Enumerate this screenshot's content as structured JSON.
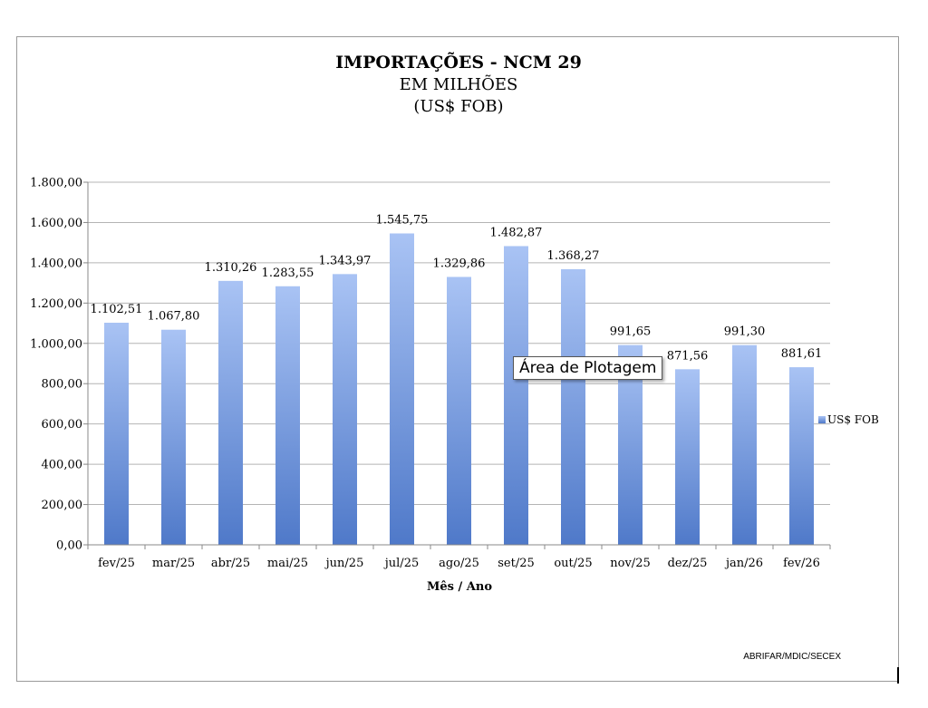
{
  "colors": {
    "bar_top": "#a9c3f4",
    "bar_bottom": "#4f79c9",
    "grid": "#b4b4b4",
    "axis": "#888888"
  },
  "tooltip": "Área de Plotagem",
  "source": "ABRIFAR/MDIC/SECEX",
  "chart_data": {
    "type": "bar",
    "title": "IMPORTAÇÕES - NCM 29",
    "subtitle_lines": [
      "EM MILHÕES",
      "(US$ FOB)"
    ],
    "xlabel": "Mês / Ano",
    "ylabel": "",
    "ylim": [
      0,
      1800
    ],
    "yticks": [
      0,
      200,
      400,
      600,
      800,
      1000,
      1200,
      1400,
      1600,
      1800
    ],
    "ytick_labels": [
      "0,00",
      "200,00",
      "400,00",
      "600,00",
      "800,00",
      "1.000,00",
      "1.200,00",
      "1.400,00",
      "1.600,00",
      "1.800,00"
    ],
    "grid": true,
    "legend_position": "right",
    "categories": [
      "fev/25",
      "mar/25",
      "abr/25",
      "mai/25",
      "jun/25",
      "jul/25",
      "ago/25",
      "set/25",
      "out/25",
      "nov/25",
      "dez/25",
      "jan/26",
      "fev/26"
    ],
    "series": [
      {
        "name": "US$ FOB",
        "values": [
          1102.51,
          1067.8,
          1310.26,
          1283.55,
          1343.97,
          1545.75,
          1329.86,
          1482.87,
          1368.27,
          991.65,
          871.56,
          991.3,
          881.61
        ],
        "labels": [
          "1.102,51",
          "1.067,80",
          "1.310,26",
          "1.283,55",
          "1.343,97",
          "1.545,75",
          "1.329,86",
          "1.482,87",
          "1.368,27",
          "991,65",
          "871,56",
          "991,30",
          "881,61"
        ]
      }
    ]
  }
}
